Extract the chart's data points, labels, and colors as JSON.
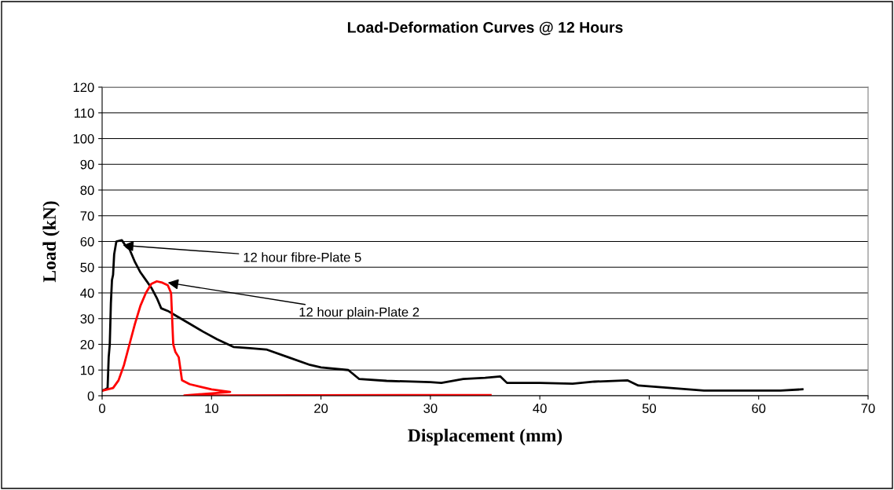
{
  "chart_data": {
    "type": "line",
    "title": "Load-Deformation Curves @ 12 Hours",
    "xlabel": "Displacement (mm)",
    "ylabel": "Load (kN)",
    "xlim": [
      0,
      70
    ],
    "xticks": [
      0,
      10,
      20,
      30,
      40,
      50,
      60,
      70
    ],
    "ylim": [
      0,
      120
    ],
    "yticks": [
      0,
      10,
      20,
      30,
      40,
      50,
      60,
      70,
      80,
      90,
      100,
      110,
      120
    ],
    "grid": "y",
    "legend": false,
    "marker": "none",
    "line_style": "solid",
    "series": [
      {
        "color": "#000000",
        "x": [
          0,
          0.3,
          0.5,
          0.6,
          0.7,
          0.8,
          0.9,
          1.0,
          1.1,
          1.3,
          1.8,
          2.2,
          2.5,
          3,
          3.5,
          4,
          4.5,
          5,
          5.4,
          6,
          6.8,
          8,
          9.2,
          10.5,
          12,
          13.5,
          15,
          17,
          19,
          20,
          22.5,
          23.5,
          26,
          30,
          31,
          33,
          35,
          36.4,
          37,
          40,
          43,
          45,
          48,
          49,
          52,
          55,
          60,
          62,
          64
        ],
        "values": [
          2,
          2.5,
          3,
          15,
          20,
          36,
          45,
          47,
          55,
          60,
          60.5,
          58,
          57,
          52,
          48,
          45,
          42,
          38,
          34,
          33,
          31,
          28,
          25,
          22,
          19,
          18.5,
          18,
          15,
          12,
          11,
          10,
          6.5,
          5.8,
          5.3,
          5,
          6.5,
          7,
          7.5,
          5,
          5,
          4.7,
          5.5,
          6,
          4,
          3,
          2,
          2,
          2,
          2.5
        ]
      },
      {
        "color": "#ff0000",
        "x": [
          0,
          1,
          1.5,
          2,
          2.5,
          3,
          3.5,
          4,
          4.5,
          5,
          5.5,
          6,
          6.3,
          6.5,
          6.7,
          7,
          7.3,
          8,
          9,
          10,
          11.7,
          7.5,
          35.5
        ],
        "values": [
          2,
          3,
          6,
          12,
          20,
          28,
          35,
          40,
          43.5,
          44.5,
          44,
          43,
          40,
          20,
          17,
          15,
          6,
          4.5,
          3.5,
          2.5,
          1.5,
          0.1,
          0.3
        ]
      }
    ],
    "annotations": [
      {
        "text": "12 hour fibre-Plate 5",
        "x": 1.9,
        "y": 58.5
      },
      {
        "text": "12 hour plain-Plate 2",
        "x": 6,
        "y": 44
      }
    ]
  }
}
